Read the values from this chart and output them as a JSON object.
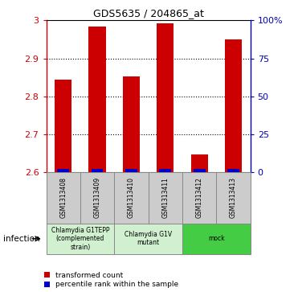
{
  "title": "GDS5635 / 204865_at",
  "samples": [
    "GSM1313408",
    "GSM1313409",
    "GSM1313410",
    "GSM1313411",
    "GSM1313412",
    "GSM1313413"
  ],
  "red_values": [
    2.845,
    2.983,
    2.853,
    2.993,
    2.648,
    2.951
  ],
  "blue_values": [
    2.603,
    2.603,
    2.602,
    2.603,
    2.602,
    2.603
  ],
  "ylim": [
    2.6,
    3.0
  ],
  "yticks_left": [
    2.6,
    2.7,
    2.8,
    2.9,
    3.0
  ],
  "ytick_labels_left": [
    "2.6",
    "2.7",
    "2.8",
    "2.9",
    "3"
  ],
  "yticks_right_vals": [
    0,
    25,
    50,
    75,
    100
  ],
  "ytick_labels_right": [
    "0",
    "25",
    "50",
    "75",
    "100%"
  ],
  "groups": [
    {
      "label": "Chlamydia G1TEPP\n(complemented\nstrain)",
      "color": "#d0f0d0",
      "start": 0,
      "end": 2
    },
    {
      "label": "Chlamydia G1V\nmutant",
      "color": "#d0f0d0",
      "start": 2,
      "end": 4
    },
    {
      "label": "mock",
      "color": "#44cc44",
      "start": 4,
      "end": 6
    }
  ],
  "infection_label": "infection",
  "legend_red": "transformed count",
  "legend_blue": "percentile rank within the sample",
  "bar_width": 0.5,
  "red_color": "#cc0000",
  "blue_color": "#0000cc",
  "axis_color_left": "#cc0000",
  "axis_color_right": "#0000bb",
  "grid_yticks": [
    2.7,
    2.8,
    2.9
  ]
}
